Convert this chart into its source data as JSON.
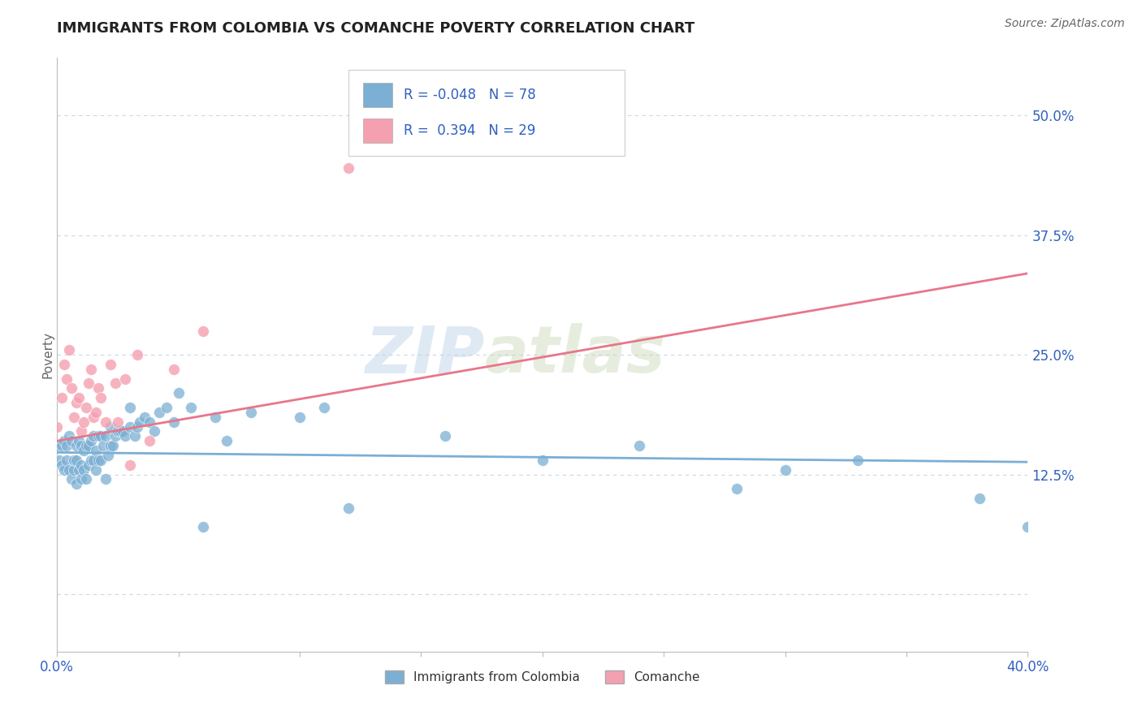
{
  "title": "IMMIGRANTS FROM COLOMBIA VS COMANCHE POVERTY CORRELATION CHART",
  "source": "Source: ZipAtlas.com",
  "ylabel": "Poverty",
  "yticks": [
    0.0,
    0.125,
    0.25,
    0.375,
    0.5
  ],
  "ytick_labels": [
    "",
    "12.5%",
    "25.0%",
    "37.5%",
    "50.0%"
  ],
  "xmin": 0.0,
  "xmax": 0.4,
  "ymin": -0.06,
  "ymax": 0.56,
  "color_blue": "#7bafd4",
  "color_pink": "#f4a0b0",
  "color_blue_line": "#7bafd4",
  "color_pink_line": "#e8768a",
  "color_axis_label": "#3060c0",
  "color_title": "#222222",
  "color_grid": "#c8d8e8",
  "blue_scatter_x": [
    0.0,
    0.001,
    0.002,
    0.002,
    0.003,
    0.003,
    0.004,
    0.004,
    0.005,
    0.005,
    0.006,
    0.006,
    0.007,
    0.007,
    0.008,
    0.008,
    0.008,
    0.009,
    0.009,
    0.01,
    0.01,
    0.01,
    0.011,
    0.011,
    0.012,
    0.012,
    0.013,
    0.013,
    0.014,
    0.014,
    0.015,
    0.015,
    0.016,
    0.016,
    0.017,
    0.017,
    0.018,
    0.018,
    0.019,
    0.02,
    0.02,
    0.021,
    0.022,
    0.022,
    0.023,
    0.024,
    0.025,
    0.026,
    0.027,
    0.028,
    0.03,
    0.03,
    0.032,
    0.033,
    0.034,
    0.036,
    0.038,
    0.04,
    0.042,
    0.045,
    0.048,
    0.05,
    0.055,
    0.06,
    0.065,
    0.07,
    0.08,
    0.1,
    0.11,
    0.12,
    0.16,
    0.2,
    0.24,
    0.28,
    0.3,
    0.33,
    0.38,
    0.4
  ],
  "blue_scatter_y": [
    0.155,
    0.14,
    0.135,
    0.155,
    0.13,
    0.16,
    0.14,
    0.155,
    0.13,
    0.165,
    0.12,
    0.16,
    0.13,
    0.14,
    0.115,
    0.14,
    0.155,
    0.13,
    0.16,
    0.12,
    0.135,
    0.155,
    0.13,
    0.15,
    0.12,
    0.155,
    0.135,
    0.155,
    0.14,
    0.16,
    0.14,
    0.165,
    0.13,
    0.15,
    0.14,
    0.165,
    0.14,
    0.165,
    0.155,
    0.12,
    0.165,
    0.145,
    0.155,
    0.175,
    0.155,
    0.165,
    0.17,
    0.17,
    0.17,
    0.165,
    0.175,
    0.195,
    0.165,
    0.175,
    0.18,
    0.185,
    0.18,
    0.17,
    0.19,
    0.195,
    0.18,
    0.21,
    0.195,
    0.07,
    0.185,
    0.16,
    0.19,
    0.185,
    0.195,
    0.09,
    0.165,
    0.14,
    0.155,
    0.11,
    0.13,
    0.14,
    0.1,
    0.07
  ],
  "pink_scatter_x": [
    0.0,
    0.002,
    0.003,
    0.004,
    0.005,
    0.006,
    0.007,
    0.008,
    0.009,
    0.01,
    0.011,
    0.012,
    0.013,
    0.014,
    0.015,
    0.016,
    0.017,
    0.018,
    0.02,
    0.022,
    0.024,
    0.025,
    0.028,
    0.03,
    0.033,
    0.038,
    0.048,
    0.06,
    0.12
  ],
  "pink_scatter_y": [
    0.175,
    0.205,
    0.24,
    0.225,
    0.255,
    0.215,
    0.185,
    0.2,
    0.205,
    0.17,
    0.18,
    0.195,
    0.22,
    0.235,
    0.185,
    0.19,
    0.215,
    0.205,
    0.18,
    0.24,
    0.22,
    0.18,
    0.225,
    0.135,
    0.25,
    0.16,
    0.235,
    0.275,
    0.445
  ],
  "blue_trend_x": [
    0.0,
    0.4
  ],
  "blue_trend_y": [
    0.148,
    0.138
  ],
  "pink_trend_x": [
    0.0,
    0.4
  ],
  "pink_trend_y": [
    0.16,
    0.335
  ],
  "legend1_label": "Immigrants from Colombia",
  "legend2_label": "Comanche",
  "watermark_part1": "ZIP",
  "watermark_part2": "atlas"
}
